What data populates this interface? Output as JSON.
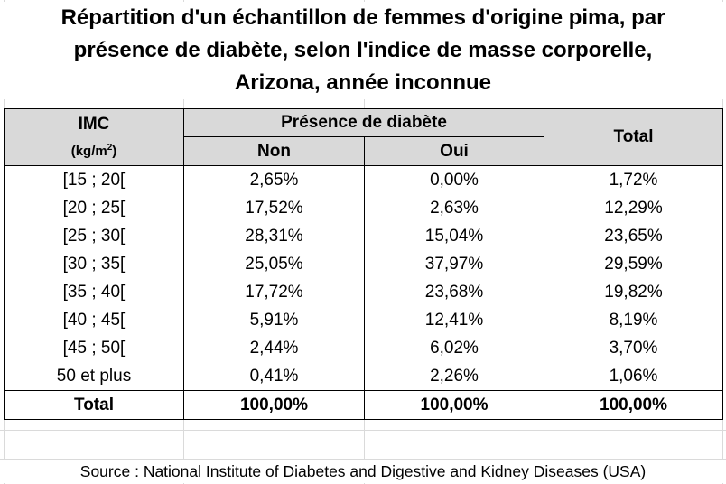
{
  "title": {
    "line1": "Répartition d'un échantillon de femmes d'origine pima, par",
    "line2": "présence de diabète, selon l'indice de masse corporelle,",
    "line3": "Arizona, année inconnue"
  },
  "table": {
    "headers": {
      "imc": "IMC",
      "imc_unit": "(kg/m",
      "imc_unit_exp": "2",
      "imc_unit_close": ")",
      "presence": "Présence de diabète",
      "non": "Non",
      "oui": "Oui",
      "total": "Total"
    },
    "rows": [
      {
        "imc": "[15 ; 20[",
        "non": "2,65%",
        "oui": "0,00%",
        "total": "1,72%"
      },
      {
        "imc": "[20 ; 25[",
        "non": "17,52%",
        "oui": "2,63%",
        "total": "12,29%"
      },
      {
        "imc": "[25 ; 30[",
        "non": "28,31%",
        "oui": "15,04%",
        "total": "23,65%"
      },
      {
        "imc": "[30 ; 35[",
        "non": "25,05%",
        "oui": "37,97%",
        "total": "29,59%"
      },
      {
        "imc": "[35 ; 40[",
        "non": "17,72%",
        "oui": "23,68%",
        "total": "19,82%"
      },
      {
        "imc": "[40 ; 45[",
        "non": "5,91%",
        "oui": "12,41%",
        "total": "8,19%"
      },
      {
        "imc": "[45 ; 50[",
        "non": "2,44%",
        "oui": "6,02%",
        "total": "3,70%"
      },
      {
        "imc": "50 et plus",
        "non": "0,41%",
        "oui": "2,26%",
        "total": "1,06%"
      }
    ],
    "total_row": {
      "imc": "Total",
      "non": "100,00%",
      "oui": "100,00%",
      "total": "100,00%"
    }
  },
  "source": "Source : National Institute of Diabetes and Digestive and Kidney  Diseases (USA)"
}
